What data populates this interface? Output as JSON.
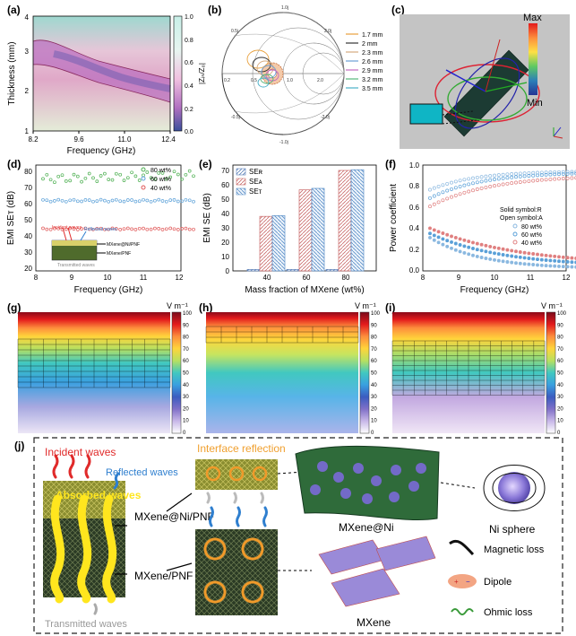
{
  "labels": {
    "a": "(a)",
    "b": "(b)",
    "c": "(c)",
    "d": "(d)",
    "e": "(e)",
    "f": "(f)",
    "g": "(g)",
    "h": "(h)",
    "i": "(i)",
    "j": "(j)"
  },
  "panel_a": {
    "ylabel": "Thickness (mm)",
    "xlabel": "Frequency (GHz)",
    "xticks": [
      "8.2",
      "9.6",
      "11.0",
      "12.4"
    ],
    "yticks": [
      "1",
      "2",
      "3",
      "4"
    ],
    "cbar_label": "|Zᵢₙ/Z₀|",
    "cbar_ticks": [
      "1.0",
      "0.8",
      "0.6",
      "0.4",
      "0.2",
      "0.0"
    ]
  },
  "panel_b": {
    "legend": [
      "1.7 mm",
      "2 mm",
      "2.3 mm",
      "2.6 mm",
      "2.9 mm",
      "3.2 mm",
      "3.5 mm"
    ],
    "colors": [
      "#e8a03c",
      "#333333",
      "#d6a97e",
      "#6a9fd6",
      "#c46ac0",
      "#57b67c",
      "#4ab0c8"
    ]
  },
  "panel_c": {
    "max": "Max",
    "min": "Min"
  },
  "panel_d": {
    "ylabel": "EMI SEᴛ (dB)",
    "xlabel": "Frequency (GHz)",
    "xticks": [
      "8",
      "9",
      "10",
      "11",
      "12"
    ],
    "yticks": [
      "20",
      "30",
      "40",
      "50",
      "60",
      "70",
      "80"
    ],
    "legend": [
      "80 wt%",
      "60 wt%",
      "40 wt%"
    ],
    "inset": {
      "incident": "Incident waves",
      "reflected": "Reflected waves",
      "top": "MXene@Ni/PNF",
      "bottom": "MXene/PNF",
      "transmitted": "Transmitted waves"
    }
  },
  "panel_e": {
    "ylabel": "EMI SE (dB)",
    "xlabel": "Mass fraction of MXene (wt%)",
    "categories": [
      "40",
      "60",
      "80"
    ],
    "yticks": [
      "0",
      "10",
      "20",
      "30",
      "40",
      "50",
      "60",
      "70"
    ],
    "legend": [
      "SEʀ",
      "SEᴀ",
      "SEᴛ"
    ]
  },
  "panel_f": {
    "ylabel": "Power coefficient",
    "xlabel": "Frequency (GHz)",
    "xticks": [
      "8",
      "9",
      "10",
      "11",
      "12"
    ],
    "yticks": [
      "0.0",
      "0.2",
      "0.4",
      "0.6",
      "0.8",
      "1.0"
    ],
    "note1": "Solid symbol:R",
    "note2": "Open symbol:A",
    "legend": [
      "80 wt%",
      "60 wt%",
      "40 wt%"
    ]
  },
  "field_maps": {
    "unit": "V m⁻¹",
    "ticks": [
      "100",
      "90",
      "80",
      "70",
      "60",
      "50",
      "40",
      "30",
      "20",
      "10",
      "0"
    ]
  },
  "panel_j": {
    "incident": "Incident waves",
    "reflected": "Reflected waves",
    "absorbed": "Absorbed waves",
    "interface": "Interface reflection",
    "mxene_ni_pnf": "MXene@Ni/PNF",
    "mxene_pnf": "MXene/PNF",
    "transmitted": "Transmitted waves",
    "mxene_ni": "MXene@Ni",
    "ni_sphere": "Ni sphere",
    "mxene": "MXene",
    "magnetic": "Magnetic loss",
    "dipole": "Dipole",
    "ohmic": "Ohmic loss"
  },
  "colors": {
    "red": "#e02a2a",
    "blue": "#2f7fcf",
    "yellow": "#f2e21a",
    "orange": "#f0a030",
    "green": "#2f6b3a"
  }
}
